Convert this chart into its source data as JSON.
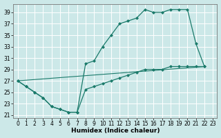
{
  "xlabel": "Humidex (Indice chaleur)",
  "bg_color": "#cce8e8",
  "grid_color": "#b8d8d8",
  "line_color": "#1a7a6a",
  "xlim": [
    -0.5,
    23.5
  ],
  "ylim": [
    20.5,
    40.5
  ],
  "yticks": [
    21,
    23,
    25,
    27,
    29,
    31,
    33,
    35,
    37,
    39
  ],
  "xticks": [
    0,
    1,
    2,
    3,
    4,
    5,
    6,
    7,
    8,
    9,
    10,
    11,
    12,
    13,
    14,
    15,
    16,
    17,
    18,
    19,
    20,
    21,
    22,
    23
  ],
  "upper_curve": [
    [
      0,
      27.0
    ],
    [
      1,
      26.0
    ],
    [
      2,
      25.0
    ],
    [
      3,
      24.0
    ],
    [
      4,
      22.5
    ],
    [
      5,
      22.0
    ],
    [
      6,
      21.5
    ],
    [
      7,
      21.5
    ],
    [
      8,
      30.0
    ],
    [
      9,
      30.5
    ],
    [
      10,
      33.0
    ],
    [
      11,
      35.0
    ],
    [
      12,
      37.0
    ],
    [
      13,
      37.5
    ],
    [
      14,
      38.0
    ],
    [
      15,
      39.5
    ],
    [
      16,
      39.0
    ],
    [
      17,
      39.0
    ],
    [
      18,
      39.5
    ],
    [
      19,
      39.5
    ],
    [
      20,
      39.5
    ],
    [
      21,
      33.5
    ],
    [
      22,
      29.5
    ]
  ],
  "lower_curve": [
    [
      0,
      27.0
    ],
    [
      1,
      26.0
    ],
    [
      2,
      25.0
    ],
    [
      3,
      24.0
    ],
    [
      4,
      22.5
    ],
    [
      5,
      22.0
    ],
    [
      6,
      21.5
    ],
    [
      7,
      21.5
    ],
    [
      8,
      25.5
    ],
    [
      9,
      26.0
    ],
    [
      10,
      26.5
    ],
    [
      11,
      27.0
    ],
    [
      12,
      27.5
    ],
    [
      13,
      28.0
    ],
    [
      14,
      28.5
    ],
    [
      15,
      29.0
    ],
    [
      16,
      29.0
    ],
    [
      17,
      29.0
    ],
    [
      18,
      29.5
    ],
    [
      19,
      29.5
    ],
    [
      20,
      29.5
    ],
    [
      21,
      29.5
    ],
    [
      22,
      29.5
    ]
  ],
  "diagonal_line": [
    [
      0,
      27.0
    ],
    [
      22,
      29.5
    ]
  ]
}
